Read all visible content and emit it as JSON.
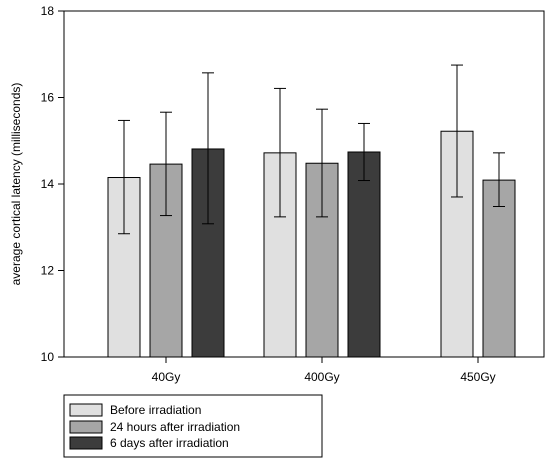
{
  "chart_data": {
    "type": "bar",
    "ylabel": "average cortical latency (milliseconds)",
    "ylim": [
      10,
      18
    ],
    "yticks": [
      10,
      12,
      14,
      16,
      18
    ],
    "categories": [
      "40Gy",
      "400Gy",
      "450Gy"
    ],
    "series": [
      {
        "name": "Before irradiation",
        "color": "#e0e0e0",
        "values": [
          14.15,
          14.72,
          15.22
        ],
        "error_low": [
          12.85,
          13.24,
          13.7
        ],
        "error_high": [
          15.47,
          16.21,
          16.75
        ]
      },
      {
        "name": "24 hours after irradiation",
        "color": "#a6a6a6",
        "values": [
          14.46,
          14.48,
          14.09
        ],
        "error_low": [
          13.27,
          13.24,
          13.48
        ],
        "error_high": [
          15.66,
          15.73,
          14.72
        ]
      },
      {
        "name": "6 days after irradiation",
        "color": "#3c3c3c",
        "values": [
          14.81,
          14.74,
          null
        ],
        "error_low": [
          13.08,
          14.08,
          null
        ],
        "error_high": [
          16.57,
          15.4,
          null
        ]
      }
    ],
    "legend_position": "bottom-left",
    "grid": false
  }
}
